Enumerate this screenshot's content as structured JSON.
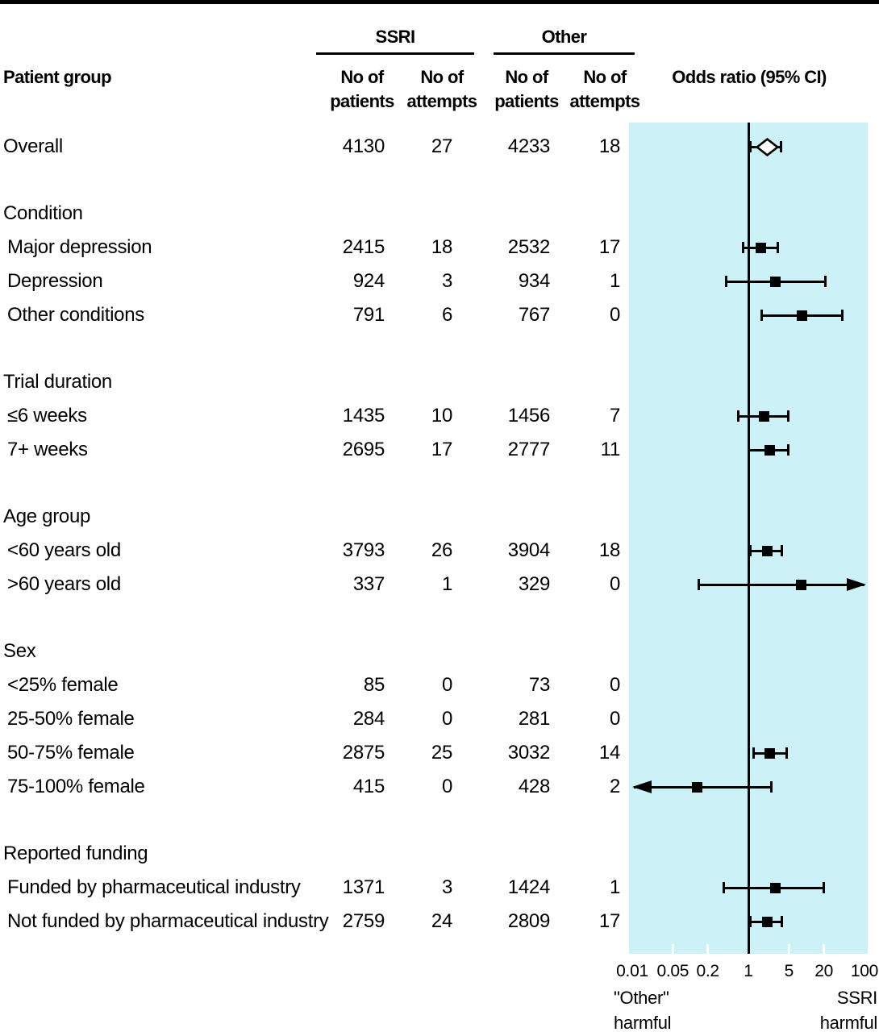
{
  "header": {
    "patient_group": "Patient group",
    "ssri": "SSRI",
    "other": "Other",
    "no_of": "No of",
    "patients": "patients",
    "attempts": "attempts",
    "odds_ratio": "Odds ratio (95% CI)"
  },
  "footer": {
    "left_line1": "\"Other\"",
    "left_line2": "harmful",
    "right_line1": "SSRI",
    "right_line2": "harmful"
  },
  "colors": {
    "plot_bg": "#ccf2f8",
    "ink": "#000000",
    "marker_fill": "#000000",
    "diamond_fill": "#ffffff"
  },
  "chart_data": {
    "type": "forest",
    "x_scale": "log10",
    "xlim": [
      0.01,
      100
    ],
    "x_ticks": [
      0.01,
      0.05,
      0.2,
      1,
      5,
      20,
      100
    ],
    "x_tick_labels": [
      "0.01",
      "0.05",
      "0.2",
      "1",
      "5",
      "20",
      "100"
    ],
    "minor_ticks_white": [
      0.05,
      0.2,
      5,
      20
    ],
    "reference_line": 1,
    "legend_left": "\"Other\" harmful",
    "legend_right": "SSRI harmful",
    "rows": [
      {
        "type": "data",
        "label": "Overall",
        "indent": false,
        "ssri_patients": "4130",
        "ssri_attempts": "27",
        "other_patients": "4233",
        "other_attempts": "18",
        "or": 2.15,
        "ci_low": 1.07,
        "ci_high": 3.7,
        "marker": "diamond",
        "arrow": null
      },
      {
        "type": "section",
        "label": "Condition"
      },
      {
        "type": "data",
        "label": "Major depression",
        "indent": true,
        "ssri_patients": "2415",
        "ssri_attempts": "18",
        "other_patients": "2532",
        "other_attempts": "17",
        "or": 1.62,
        "ci_low": 0.8,
        "ci_high": 3.2,
        "marker": "square",
        "arrow": null
      },
      {
        "type": "data",
        "label": "Depression",
        "indent": true,
        "ssri_patients": "924",
        "ssri_attempts": "3",
        "other_patients": "934",
        "other_attempts": "1",
        "or": 2.95,
        "ci_low": 0.41,
        "ci_high": 21,
        "marker": "square",
        "arrow": null
      },
      {
        "type": "data",
        "label": "Other conditions",
        "indent": true,
        "ssri_patients": "791",
        "ssri_attempts": "6",
        "other_patients": "767",
        "other_attempts": "0",
        "or": 8.5,
        "ci_low": 1.7,
        "ci_high": 42,
        "marker": "square",
        "arrow": null
      },
      {
        "type": "section",
        "label": "Trial duration"
      },
      {
        "type": "data",
        "label": "≤6 weeks",
        "indent": true,
        "ssri_patients": "1435",
        "ssri_attempts": "10",
        "other_patients": "1456",
        "other_attempts": "7",
        "or": 1.84,
        "ci_low": 0.66,
        "ci_high": 4.9,
        "marker": "square",
        "arrow": null
      },
      {
        "type": "data",
        "label": "7+ weeks",
        "indent": true,
        "ssri_patients": "2695",
        "ssri_attempts": "17",
        "other_patients": "2777",
        "other_attempts": "11",
        "or": 2.37,
        "ci_low": 1.03,
        "ci_high": 4.8,
        "marker": "square",
        "arrow": null
      },
      {
        "type": "section",
        "label": "Age group"
      },
      {
        "type": "data",
        "label": "<60 years old",
        "indent": true,
        "ssri_patients": "3793",
        "ssri_attempts": "26",
        "other_patients": "3904",
        "other_attempts": "18",
        "or": 2.15,
        "ci_low": 1.07,
        "ci_high": 3.8,
        "marker": "square",
        "arrow": null
      },
      {
        "type": "data",
        "label": ">60 years old",
        "indent": true,
        "ssri_patients": "337",
        "ssri_attempts": "1",
        "other_patients": "329",
        "other_attempts": "0",
        "or": 8.2,
        "ci_low": 0.14,
        "ci_high": null,
        "marker": "square",
        "arrow": "right"
      },
      {
        "type": "section",
        "label": "Sex"
      },
      {
        "type": "data",
        "label": "<25% female",
        "indent": true,
        "ssri_patients": "85",
        "ssri_attempts": "0",
        "other_patients": "73",
        "other_attempts": "0",
        "or": null,
        "ci_low": null,
        "ci_high": null,
        "marker": null,
        "arrow": null
      },
      {
        "type": "data",
        "label": "25-50% female",
        "indent": true,
        "ssri_patients": "284",
        "ssri_attempts": "0",
        "other_patients": "281",
        "other_attempts": "0",
        "or": null,
        "ci_low": null,
        "ci_high": null,
        "marker": null,
        "arrow": null
      },
      {
        "type": "data",
        "label": "50-75% female",
        "indent": true,
        "ssri_patients": "2875",
        "ssri_attempts": "25",
        "other_patients": "3032",
        "other_attempts": "14",
        "or": 2.37,
        "ci_low": 1.25,
        "ci_high": 4.6,
        "marker": "square",
        "arrow": null
      },
      {
        "type": "data",
        "label": "75-100% female",
        "indent": true,
        "ssri_patients": "415",
        "ssri_attempts": "0",
        "other_patients": "428",
        "other_attempts": "2",
        "or": 0.13,
        "ci_low": null,
        "ci_high": 2.45,
        "marker": "square",
        "arrow": "left"
      },
      {
        "type": "section",
        "label": "Reported funding"
      },
      {
        "type": "data",
        "label": "Funded by pharmaceutical industry",
        "indent": true,
        "ssri_patients": "1371",
        "ssri_attempts": "3",
        "other_patients": "1424",
        "other_attempts": "1",
        "or": 2.95,
        "ci_low": 0.38,
        "ci_high": 19.6,
        "marker": "square",
        "arrow": null
      },
      {
        "type": "data",
        "label": "Not funded by pharmaceutical industry",
        "indent": true,
        "ssri_patients": "2759",
        "ssri_attempts": "24",
        "other_patients": "2809",
        "other_attempts": "17",
        "or": 2.15,
        "ci_low": 1.07,
        "ci_high": 3.8,
        "marker": "square",
        "arrow": null
      }
    ]
  }
}
